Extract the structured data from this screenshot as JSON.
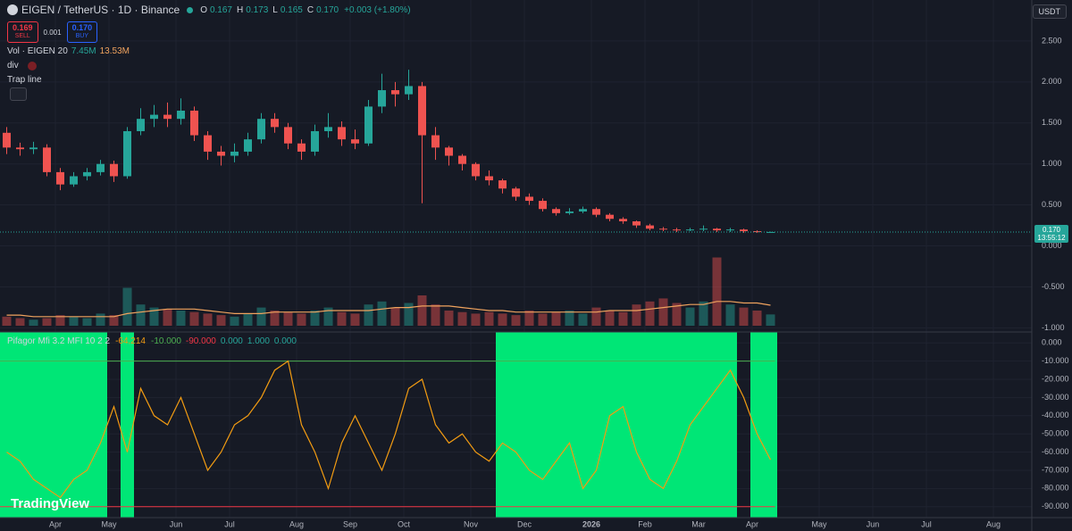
{
  "ui": {
    "symbol": "EIGEN / TetherUS · 1D · Binance",
    "ohlc": [
      {
        "key": "O",
        "label": "0.167"
      },
      {
        "key": "H",
        "label": "0.173"
      },
      {
        "key": "L",
        "label": "0.165"
      },
      {
        "key": "C",
        "label": "0.170"
      }
    ],
    "change": "+0.003 (+1.80%)",
    "sell_price": "0.169",
    "sell": "SELL",
    "spread": "0.001",
    "buy_price": "0.170",
    "buy": "BUY",
    "indicators": [
      "div",
      "Trap line"
    ],
    "currency": "USDT",
    "last_price": "0.170",
    "countdown": "13:55:12",
    "logo": "TradingView"
  },
  "chart_data": [
    {
      "type": "candlestick",
      "categories": [
        null,
        null,
        null,
        null,
        "Apr",
        null,
        null,
        null,
        "May",
        null,
        null,
        null,
        null,
        "Jun",
        null,
        null,
        null,
        "Jul",
        null,
        null,
        null,
        null,
        "Aug",
        null,
        null,
        null,
        "Sep",
        null,
        null,
        null,
        "Oct",
        null,
        null,
        null,
        null,
        "Nov",
        null,
        null,
        null,
        "Dec",
        null,
        null,
        null,
        null,
        "2026",
        null,
        null,
        null,
        "Feb",
        null,
        null,
        null,
        "Mar",
        null,
        null,
        null,
        "Apr",
        null,
        null,
        null,
        null,
        "May",
        null,
        null,
        null,
        "Jun",
        null,
        null,
        null,
        "Jul",
        null,
        null,
        null,
        null,
        "Aug",
        null,
        null
      ],
      "open": [
        1.38,
        1.2,
        1.18,
        1.2,
        0.9,
        0.75,
        0.85,
        0.9,
        1.0,
        0.85,
        1.4,
        1.55,
        1.6,
        1.55,
        1.65,
        1.35,
        1.15,
        1.1,
        1.15,
        1.3,
        1.55,
        1.45,
        1.25,
        1.15,
        1.4,
        1.45,
        1.3,
        1.25,
        1.7,
        1.9,
        1.85,
        1.95,
        1.35,
        1.2,
        1.1,
        1.0,
        0.85,
        0.8,
        0.7,
        0.6,
        0.55,
        0.45,
        0.4,
        0.42,
        0.45,
        0.38,
        0.33,
        0.3,
        0.25,
        0.21,
        0.2,
        0.19,
        0.2,
        0.21,
        0.19,
        0.2,
        0.18,
        0.167,
        null,
        null,
        null,
        null,
        null,
        null,
        null,
        null,
        null,
        null,
        null,
        null,
        null,
        null,
        null,
        null,
        null,
        null,
        null
      ],
      "high": [
        1.45,
        1.26,
        1.27,
        1.24,
        0.95,
        0.9,
        0.95,
        1.05,
        1.04,
        1.45,
        1.68,
        1.72,
        1.75,
        1.8,
        1.7,
        1.4,
        1.22,
        1.25,
        1.38,
        1.62,
        1.62,
        1.5,
        1.3,
        1.48,
        1.62,
        1.52,
        1.42,
        1.78,
        2.1,
        2.0,
        2.15,
        2.0,
        1.45,
        1.22,
        1.12,
        1.02,
        0.92,
        0.82,
        0.72,
        0.64,
        0.58,
        0.47,
        0.46,
        0.48,
        0.47,
        0.4,
        0.35,
        0.31,
        0.27,
        0.23,
        0.22,
        0.22,
        0.25,
        0.22,
        0.22,
        0.21,
        0.19,
        0.173,
        null,
        null,
        null,
        null,
        null,
        null,
        null,
        null,
        null,
        null,
        null,
        null,
        null,
        null,
        null,
        null,
        null,
        null,
        null
      ],
      "low": [
        1.12,
        1.1,
        1.12,
        0.85,
        0.68,
        0.72,
        0.8,
        0.86,
        0.78,
        0.82,
        1.35,
        1.45,
        1.45,
        1.48,
        1.28,
        1.05,
        0.98,
        1.02,
        1.1,
        1.25,
        1.38,
        1.18,
        1.05,
        1.1,
        1.32,
        1.22,
        1.18,
        1.22,
        1.62,
        1.7,
        1.78,
        0.52,
        1.05,
        0.98,
        0.92,
        0.8,
        0.74,
        0.64,
        0.55,
        0.5,
        0.42,
        0.37,
        0.38,
        0.4,
        0.35,
        0.3,
        0.27,
        0.22,
        0.19,
        0.18,
        0.17,
        0.18,
        0.18,
        0.17,
        0.17,
        0.16,
        0.16,
        0.165,
        null,
        null,
        null,
        null,
        null,
        null,
        null,
        null,
        null,
        null,
        null,
        null,
        null,
        null,
        null,
        null,
        null,
        null,
        null
      ],
      "close": [
        1.2,
        1.18,
        1.2,
        0.9,
        0.75,
        0.85,
        0.9,
        1.0,
        0.85,
        1.4,
        1.55,
        1.6,
        1.55,
        1.65,
        1.35,
        1.15,
        1.1,
        1.15,
        1.3,
        1.55,
        1.45,
        1.25,
        1.15,
        1.4,
        1.45,
        1.3,
        1.25,
        1.7,
        1.9,
        1.85,
        1.95,
        1.35,
        1.2,
        1.1,
        1.0,
        0.85,
        0.8,
        0.7,
        0.6,
        0.55,
        0.45,
        0.4,
        0.42,
        0.45,
        0.38,
        0.33,
        0.3,
        0.25,
        0.21,
        0.2,
        0.19,
        0.2,
        0.21,
        0.19,
        0.2,
        0.18,
        0.17,
        0.17,
        null,
        null,
        null,
        null,
        null,
        null,
        null,
        null,
        null,
        null,
        null,
        null,
        null,
        null,
        null,
        null,
        null,
        null,
        null
      ],
      "up_color": "#26a69a",
      "down_color": "#ef5350",
      "ylim": [
        -1.05,
        3.0
      ],
      "yticks": [
        {
          "value": -1,
          "label": "-1.000"
        },
        {
          "value": -0.5,
          "label": "-0.500"
        },
        {
          "value": 0,
          "label": "0.000"
        },
        {
          "value": 0.5,
          "label": "0.500"
        },
        {
          "value": 1,
          "label": "1.000"
        },
        {
          "value": 1.5,
          "label": "1.500"
        },
        {
          "value": 2,
          "label": "2.000"
        },
        {
          "value": 2.5,
          "label": "2.500"
        }
      ],
      "grid": true
    },
    {
      "type": "bar",
      "title": "Vol · EIGEN 20",
      "values": [
        6,
        5,
        4,
        5,
        7,
        6,
        5,
        8,
        7,
        25,
        14,
        12,
        11,
        10,
        9,
        8,
        7,
        6,
        8,
        12,
        10,
        9,
        8,
        10,
        12,
        9,
        8,
        14,
        16,
        12,
        15,
        20,
        14,
        10,
        9,
        8,
        9,
        8,
        7,
        10,
        8,
        9,
        10,
        8,
        12,
        10,
        9,
        14,
        16,
        18,
        15,
        12,
        16,
        45,
        14,
        12,
        10,
        7.45,
        null,
        null,
        null,
        null,
        null,
        null,
        null,
        null,
        null,
        null,
        null,
        null,
        null,
        null,
        null,
        null,
        null,
        null,
        null
      ],
      "ma": [
        7,
        7,
        6,
        6,
        6,
        6,
        6,
        6,
        6,
        8,
        9,
        10,
        11,
        11,
        11,
        10,
        9,
        8,
        8,
        8,
        9,
        9,
        9,
        9,
        10,
        10,
        10,
        10,
        11,
        12,
        12,
        13,
        13,
        13,
        12,
        11,
        10,
        10,
        9,
        9,
        9,
        9,
        9,
        9,
        9,
        10,
        10,
        10,
        11,
        12,
        13,
        14,
        14,
        16,
        16,
        15,
        15,
        13.53,
        null,
        null,
        null,
        null,
        null,
        null,
        null,
        null,
        null,
        null,
        null,
        null,
        null,
        null,
        null,
        null,
        null,
        null,
        null
      ],
      "legend_values": [
        {
          "value": 7.45,
          "label": "7.45M"
        },
        {
          "value": 13.53,
          "label": "13.53M"
        }
      ],
      "ma_color": "#f0a35e",
      "ylim": [
        0,
        50
      ]
    },
    {
      "type": "line",
      "title": "Pifagor Mfi 3.2 MFI 10 2 2",
      "values": [
        -60,
        -65,
        -75,
        -80,
        -85,
        -75,
        -70,
        -55,
        -35,
        -60,
        -25,
        -40,
        -45,
        -30,
        -50,
        -70,
        -60,
        -45,
        -40,
        -30,
        -15,
        -10,
        -45,
        -60,
        -80,
        -55,
        -40,
        -55,
        -70,
        -50,
        -25,
        -20,
        -45,
        -55,
        -50,
        -60,
        -65,
        -55,
        -60,
        -70,
        -75,
        -65,
        -55,
        -80,
        -70,
        -40,
        -35,
        -60,
        -75,
        -80,
        -65,
        -45,
        -35,
        -25,
        -15,
        -30,
        -50,
        -64.214,
        null,
        null,
        null,
        null,
        null,
        null,
        null,
        null,
        null,
        null,
        null,
        null,
        null,
        null,
        null,
        null,
        null,
        null,
        null
      ],
      "signal": [
        1,
        1,
        1,
        1,
        1,
        1,
        1,
        1,
        0,
        1,
        0,
        0,
        0,
        0,
        0,
        0,
        0,
        0,
        0,
        0,
        0,
        0,
        0,
        0,
        0,
        0,
        0,
        0,
        0,
        0,
        0,
        0,
        0,
        0,
        0,
        0,
        0,
        1,
        1,
        1,
        1,
        1,
        1,
        1,
        1,
        1,
        1,
        1,
        1,
        1,
        1,
        1,
        1,
        1,
        1,
        0,
        1,
        1,
        null,
        null,
        null,
        null,
        null,
        null,
        null,
        null,
        null,
        null,
        null,
        null,
        null,
        null,
        null,
        null,
        null,
        null,
        null
      ],
      "color": "#f39c12",
      "signal_color": "#00e676",
      "plot_values": [
        {
          "value": -10,
          "label": "-10.000",
          "color": "#4caf50"
        },
        {
          "value": -90,
          "label": "-90.000",
          "color": "#f23645"
        },
        {
          "value": 0,
          "label": "0.000",
          "color": "#26a69a"
        },
        {
          "value": 1,
          "label": "1.000",
          "color": "#26a69a"
        },
        {
          "value": 0,
          "label": "0.000",
          "color": "#26a69a"
        }
      ],
      "ylim": [
        -96,
        6
      ],
      "yticks": [
        {
          "value": 0,
          "label": "0.000"
        },
        {
          "value": -10,
          "label": "-10.000"
        },
        {
          "value": -20,
          "label": "-20.000"
        },
        {
          "value": -30,
          "label": "-30.000"
        },
        {
          "value": -40,
          "label": "-40.000"
        },
        {
          "value": -50,
          "label": "-50.000"
        },
        {
          "value": -60,
          "label": "-60.000"
        },
        {
          "value": -70,
          "label": "-70.000"
        },
        {
          "value": -80,
          "label": "-80.000"
        },
        {
          "value": -90,
          "label": "-90.000"
        }
      ],
      "grid": true
    }
  ]
}
